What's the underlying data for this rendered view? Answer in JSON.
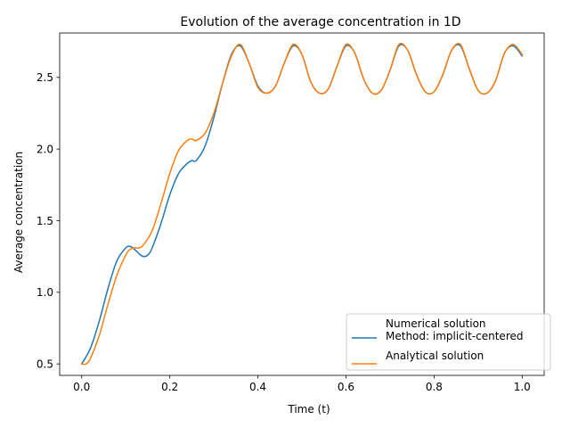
{
  "chart_data": {
    "type": "line",
    "title": "Evolution of the average concentration in 1D",
    "xlabel": "Time (t)",
    "ylabel": "Average concentration",
    "xlim": [
      -0.05,
      1.05
    ],
    "ylim": [
      0.42,
      2.81
    ],
    "xticks": [
      {
        "value": 0.0,
        "label": "0.0"
      },
      {
        "value": 0.2,
        "label": "0.2"
      },
      {
        "value": 0.4,
        "label": "0.4"
      },
      {
        "value": 0.6,
        "label": "0.6"
      },
      {
        "value": 0.8,
        "label": "0.8"
      },
      {
        "value": 1.0,
        "label": "1.0"
      }
    ],
    "yticks": [
      {
        "value": 0.5,
        "label": "0.5"
      },
      {
        "value": 1.0,
        "label": "1.0"
      },
      {
        "value": 1.5,
        "label": "1.5"
      },
      {
        "value": 2.0,
        "label": "2.0"
      },
      {
        "value": 2.5,
        "label": "2.5"
      }
    ],
    "grid": false,
    "legend_position": "lower-right",
    "series": [
      {
        "name": "Numerical solution\nMethod: implicit-centered",
        "color": "#1f77b4",
        "x": [
          0.0,
          0.02,
          0.04,
          0.06,
          0.08,
          0.1,
          0.11,
          0.12,
          0.13,
          0.14,
          0.15,
          0.16,
          0.18,
          0.2,
          0.22,
          0.24,
          0.25,
          0.26,
          0.28,
          0.3,
          0.32,
          0.34,
          0.36,
          0.38,
          0.4,
          0.42,
          0.44,
          0.46,
          0.48,
          0.5,
          0.52,
          0.54,
          0.56,
          0.58,
          0.6,
          0.62,
          0.64,
          0.66,
          0.68,
          0.7,
          0.72,
          0.74,
          0.76,
          0.78,
          0.8,
          0.82,
          0.84,
          0.86,
          0.88,
          0.9,
          0.92,
          0.94,
          0.96,
          0.98,
          1.0
        ],
        "y": [
          0.5,
          0.61,
          0.8,
          1.03,
          1.22,
          1.31,
          1.32,
          1.3,
          1.27,
          1.25,
          1.26,
          1.31,
          1.48,
          1.68,
          1.83,
          1.9,
          1.92,
          1.92,
          2.02,
          2.22,
          2.46,
          2.66,
          2.72,
          2.6,
          2.44,
          2.39,
          2.44,
          2.6,
          2.72,
          2.66,
          2.47,
          2.39,
          2.42,
          2.58,
          2.72,
          2.67,
          2.49,
          2.39,
          2.41,
          2.55,
          2.72,
          2.69,
          2.52,
          2.4,
          2.4,
          2.52,
          2.69,
          2.72,
          2.56,
          2.41,
          2.39,
          2.48,
          2.67,
          2.72,
          2.65
        ]
      },
      {
        "name": "Analytical solution",
        "color": "#ff7f0e",
        "x": [
          0.0,
          0.01,
          0.02,
          0.04,
          0.06,
          0.08,
          0.1,
          0.11,
          0.12,
          0.13,
          0.14,
          0.16,
          0.18,
          0.2,
          0.22,
          0.24,
          0.25,
          0.26,
          0.28,
          0.3,
          0.32,
          0.34,
          0.36,
          0.38,
          0.4,
          0.42,
          0.44,
          0.46,
          0.48,
          0.5,
          0.52,
          0.54,
          0.56,
          0.58,
          0.6,
          0.62,
          0.64,
          0.66,
          0.68,
          0.7,
          0.72,
          0.74,
          0.76,
          0.78,
          0.8,
          0.82,
          0.84,
          0.86,
          0.88,
          0.9,
          0.92,
          0.94,
          0.96,
          0.98,
          1.0
        ],
        "y": [
          0.5,
          0.5,
          0.54,
          0.7,
          0.92,
          1.12,
          1.26,
          1.3,
          1.31,
          1.31,
          1.33,
          1.43,
          1.62,
          1.83,
          1.99,
          2.06,
          2.07,
          2.06,
          2.11,
          2.25,
          2.46,
          2.65,
          2.73,
          2.6,
          2.43,
          2.39,
          2.44,
          2.6,
          2.73,
          2.66,
          2.47,
          2.39,
          2.42,
          2.58,
          2.73,
          2.67,
          2.49,
          2.39,
          2.41,
          2.55,
          2.73,
          2.69,
          2.52,
          2.4,
          2.4,
          2.52,
          2.69,
          2.73,
          2.56,
          2.41,
          2.39,
          2.48,
          2.67,
          2.73,
          2.66
        ]
      }
    ]
  }
}
